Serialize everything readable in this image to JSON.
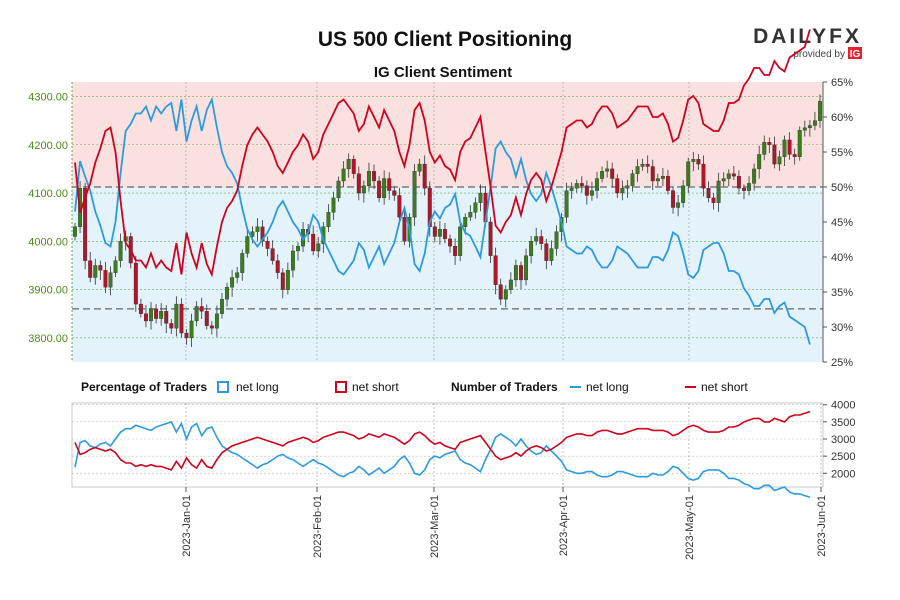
{
  "header": {
    "title": "US 500 Client Positioning",
    "subtitle": "IG Client Sentiment"
  },
  "logo": {
    "brand": "DAILYFX",
    "provided_by": "provided by",
    "partner": "IG",
    "partner_color": "#e5232b"
  },
  "legend": {
    "pct_heading": "Percentage of Traders",
    "count_heading": "Number of Traders",
    "net_long": "net long",
    "net_short": "net short"
  },
  "colors": {
    "net_long": "#2b9be0",
    "net_short": "#d0021b",
    "candle_up": "#3a7d1e",
    "candle_down": "#b0162a",
    "short_zone": "#fbe0e0",
    "long_zone": "#e4f2fb"
  },
  "chart_data": [
    {
      "type": "candlestick",
      "title": "US 500 Client Positioning",
      "subtitle": "IG Client Sentiment",
      "y_left_ticks": [
        "3800.00",
        "3900.00",
        "4000.00",
        "4100.00",
        "4200.00",
        "4300.00"
      ],
      "y_left_range": [
        3750,
        4330
      ],
      "y_right_ticks": [
        "25%",
        "30%",
        "35%",
        "40%",
        "45%",
        "50%",
        "55%",
        "60%",
        "65%"
      ],
      "y_right_range": [
        25,
        65
      ],
      "reference_lines": [
        {
          "pct": 50
        },
        {
          "price": 3860
        }
      ],
      "x_tick_labels": [
        "2023-Jan-01",
        "2023-Feb-01",
        "2023-Mar-01",
        "2023-Apr-01",
        "2023-May-01",
        "2023-Jun-01"
      ],
      "price_close": [
        4030,
        4110,
        3960,
        3925,
        3950,
        3940,
        3905,
        3935,
        3960,
        4000,
        4010,
        3955,
        3870,
        3850,
        3835,
        3860,
        3840,
        3855,
        3830,
        3820,
        3870,
        3810,
        3800,
        3835,
        3865,
        3855,
        3825,
        3820,
        3850,
        3880,
        3905,
        3925,
        3935,
        3975,
        4010,
        4020,
        4030,
        4000,
        3985,
        3960,
        3935,
        3900,
        3940,
        3980,
        3990,
        4025,
        4015,
        3980,
        3995,
        4030,
        4060,
        4090,
        4125,
        4150,
        4170,
        4140,
        4100,
        4115,
        4145,
        4125,
        4090,
        4130,
        4105,
        4095,
        4050,
        4000,
        4050,
        4145,
        4160,
        4110,
        4030,
        4010,
        4025,
        4005,
        3990,
        3970,
        4030,
        4050,
        4060,
        4080,
        4100,
        4040,
        3970,
        3910,
        3880,
        3900,
        3920,
        3950,
        3920,
        3970,
        4000,
        4010,
        3995,
        3960,
        3985,
        4020,
        4050,
        4105,
        4110,
        4120,
        4115,
        4095,
        4105,
        4130,
        4145,
        4150,
        4130,
        4100,
        4110,
        4115,
        4140,
        4155,
        4160,
        4155,
        4125,
        4130,
        4135,
        4105,
        4070,
        4080,
        4115,
        4165,
        4170,
        4160,
        4110,
        4090,
        4080,
        4125,
        4130,
        4140,
        4135,
        4110,
        4105,
        4120,
        4150,
        4180,
        4205,
        4200,
        4160,
        4175,
        4210,
        4180,
        4175,
        4230,
        4235,
        4240,
        4250,
        4290
      ],
      "pct_net_long": [
        46.5,
        53.7,
        51.5,
        49.5,
        46.5,
        44.5,
        42.0,
        41.5,
        45.0,
        52.0,
        58.0,
        59.0,
        60.5,
        60.5,
        61.5,
        59.5,
        61.5,
        60.5,
        61.5,
        62.0,
        58.0,
        62.5,
        56.5,
        59.5,
        61.5,
        58.0,
        61.0,
        62.5,
        58.5,
        55.0,
        53.0,
        52.0,
        50.5,
        47.0,
        44.0,
        42.5,
        41.5,
        42.5,
        43.5,
        45.0,
        47.0,
        48.0,
        46.5,
        45.0,
        44.0,
        42.5,
        43.5,
        46.0,
        45.0,
        42.5,
        41.0,
        39.5,
        38.0,
        37.5,
        38.5,
        39.5,
        42.0,
        41.0,
        38.5,
        40.0,
        41.5,
        39.0,
        40.5,
        42.0,
        45.0,
        47.0,
        44.0,
        39.0,
        38.0,
        40.5,
        45.0,
        46.5,
        45.5,
        47.0,
        47.5,
        49.0,
        45.0,
        43.5,
        43.0,
        41.5,
        40.0,
        45.0,
        50.0,
        55.5,
        56.5,
        55.0,
        54.0,
        51.5,
        54.0,
        51.0,
        49.0,
        48.0,
        49.0,
        52.0,
        50.0,
        47.5,
        45.0,
        41.5,
        41.0,
        40.5,
        40.5,
        41.5,
        41.0,
        39.5,
        38.5,
        38.5,
        39.5,
        41.5,
        41.0,
        40.5,
        39.5,
        38.5,
        38.5,
        38.5,
        40.0,
        40.0,
        39.5,
        41.0,
        43.5,
        43.0,
        40.5,
        37.5,
        37.0,
        38.0,
        41.0,
        41.5,
        42.0,
        42.0,
        40.5,
        38.0,
        38.0,
        37.5,
        35.5,
        34.5,
        33.0,
        33.0,
        34.0,
        34.0,
        32.0,
        33.0,
        33.5,
        31.5,
        31.0,
        30.5,
        30.0,
        27.5
      ],
      "series": [
        {
          "name": "net long"
        },
        {
          "name": "net short"
        }
      ]
    },
    {
      "type": "line",
      "title": "",
      "y_ticks": [
        "2000",
        "2500",
        "3000",
        "3500",
        "4000"
      ],
      "y_range": [
        1600,
        4050
      ],
      "series": [
        {
          "name": "net long",
          "values": [
            2180,
            2900,
            2950,
            2800,
            2750,
            2850,
            2900,
            2800,
            3000,
            3200,
            3300,
            3300,
            3400,
            3350,
            3300,
            3250,
            3350,
            3400,
            3450,
            3500,
            3200,
            3450,
            3000,
            3350,
            3450,
            3100,
            3300,
            3350,
            3050,
            2800,
            2700,
            2600,
            2550,
            2450,
            2350,
            2250,
            2150,
            2250,
            2300,
            2400,
            2500,
            2550,
            2450,
            2400,
            2300,
            2200,
            2300,
            2400,
            2300,
            2250,
            2150,
            2050,
            1950,
            1900,
            2000,
            2050,
            2200,
            2100,
            1950,
            2050,
            2150,
            2000,
            2100,
            2200,
            2400,
            2500,
            2300,
            2000,
            1950,
            2100,
            2400,
            2500,
            2450,
            2550,
            2600,
            2650,
            2400,
            2300,
            2250,
            2150,
            2050,
            2400,
            2700,
            3050,
            3150,
            3050,
            2950,
            2800,
            3000,
            2800,
            2650,
            2550,
            2600,
            2800,
            2650,
            2500,
            2350,
            2100,
            2050,
            2000,
            2000,
            2050,
            2050,
            1950,
            1900,
            1900,
            1950,
            2050,
            2050,
            2000,
            1950,
            1900,
            1900,
            1900,
            2000,
            1950,
            1950,
            2050,
            2200,
            2150,
            2000,
            1850,
            1800,
            1850,
            2050,
            2100,
            2100,
            2100,
            2000,
            1850,
            1850,
            1800,
            1700,
            1650,
            1550,
            1550,
            1650,
            1650,
            1500,
            1550,
            1600,
            1450,
            1400,
            1400,
            1350,
            1300
          ]
        },
        {
          "name": "net short",
          "values": [
            2900,
            2550,
            2600,
            2700,
            2750,
            2700,
            2650,
            2700,
            2600,
            2400,
            2300,
            2300,
            2200,
            2250,
            2200,
            2250,
            2200,
            2200,
            2150,
            2100,
            2350,
            2150,
            2450,
            2250,
            2150,
            2400,
            2200,
            2150,
            2400,
            2600,
            2700,
            2800,
            2850,
            2900,
            2950,
            3000,
            3050,
            3000,
            2950,
            2900,
            2850,
            2800,
            2900,
            2950,
            3000,
            3050,
            3000,
            2900,
            2950,
            3050,
            3100,
            3150,
            3200,
            3200,
            3150,
            3100,
            3000,
            3050,
            3150,
            3100,
            3050,
            3150,
            3100,
            3050,
            2950,
            2850,
            2950,
            3150,
            3200,
            3100,
            2950,
            2850,
            2900,
            2800,
            2750,
            2700,
            2900,
            2950,
            3000,
            3050,
            3100,
            2900,
            2700,
            2500,
            2400,
            2450,
            2500,
            2600,
            2500,
            2650,
            2750,
            2800,
            2750,
            2650,
            2700,
            2800,
            2900,
            3050,
            3100,
            3150,
            3150,
            3100,
            3100,
            3200,
            3250,
            3250,
            3200,
            3150,
            3150,
            3200,
            3250,
            3300,
            3300,
            3300,
            3250,
            3250,
            3250,
            3200,
            3100,
            3150,
            3250,
            3350,
            3400,
            3350,
            3250,
            3200,
            3200,
            3200,
            3250,
            3350,
            3350,
            3400,
            3500,
            3550,
            3600,
            3600,
            3500,
            3500,
            3600,
            3550,
            3500,
            3650,
            3700,
            3700,
            3750,
            3800
          ]
        }
      ]
    }
  ]
}
